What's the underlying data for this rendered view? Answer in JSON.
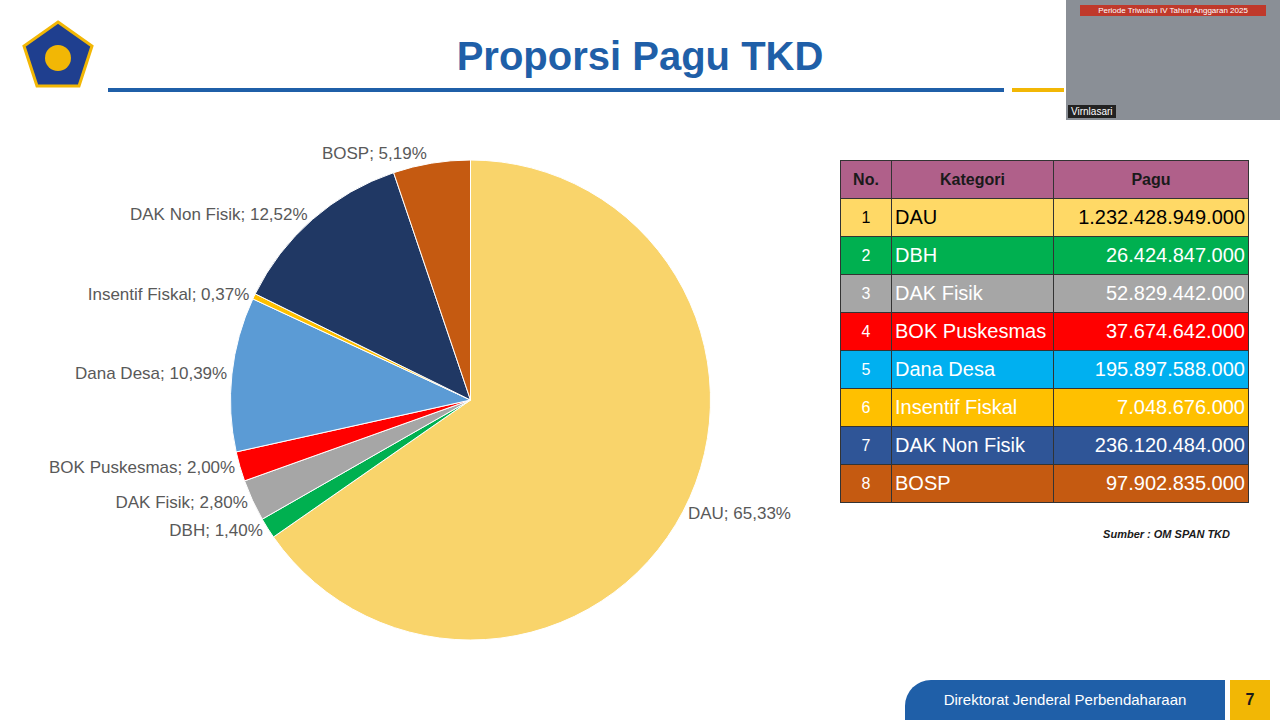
{
  "header": {
    "title": "Proporsi Pagu TKD"
  },
  "chart_data": {
    "type": "pie",
    "categories": [
      "DAU",
      "DBH",
      "DAK Fisik",
      "BOK Puskesmas",
      "Dana Desa",
      "Insentif Fiskal",
      "DAK Non Fisik",
      "BOSP"
    ],
    "values": [
      65.33,
      1.4,
      2.8,
      2.0,
      10.39,
      0.37,
      12.52,
      5.19
    ],
    "value_labels": [
      "DAU; 65,33%",
      "DBH; 1,40%",
      "DAK Fisik; 2,80%",
      "BOK Puskesmas; 2,00%",
      "Dana Desa; 10,39%",
      "Insentif Fiskal; 0,37%",
      "DAK Non Fisik; 12,52%",
      "BOSP; 5,19%"
    ],
    "colors": [
      "#f9d46b",
      "#00b050",
      "#a6a6a6",
      "#ff0000",
      "#5b9bd5",
      "#ffc000",
      "#203864",
      "#c55a11"
    ],
    "data_labels": true
  },
  "table": {
    "columns": [
      "No.",
      "Kategori",
      "Pagu"
    ],
    "rows": [
      [
        "1",
        "DAU",
        "1.232.428.949.000"
      ],
      [
        "2",
        "DBH",
        "26.424.847.000"
      ],
      [
        "3",
        "DAK Fisik",
        "52.829.442.000"
      ],
      [
        "4",
        "BOK Puskesmas",
        "37.674.642.000"
      ],
      [
        "5",
        "Dana Desa",
        "195.897.588.000"
      ],
      [
        "6",
        "Insentif Fiskal",
        "7.048.676.000"
      ],
      [
        "7",
        "DAK Non Fisik",
        "236.120.484.000"
      ],
      [
        "8",
        "BOSP",
        "97.902.835.000"
      ]
    ],
    "colors": [
      "#ffd966",
      "#00b050",
      "#a6a6a6",
      "#ff0000",
      "#00b0f0",
      "#ffc000",
      "#2f5597",
      "#c55a11"
    ]
  },
  "source": "Sumber : OM SPAN TKD",
  "footer": {
    "text": "Direktorat Jenderal Perbendaharaan",
    "page": "7"
  },
  "video": {
    "caption": "Periode Triwulan IV Tahun Anggaran 2025",
    "name": "Virnlasari"
  }
}
